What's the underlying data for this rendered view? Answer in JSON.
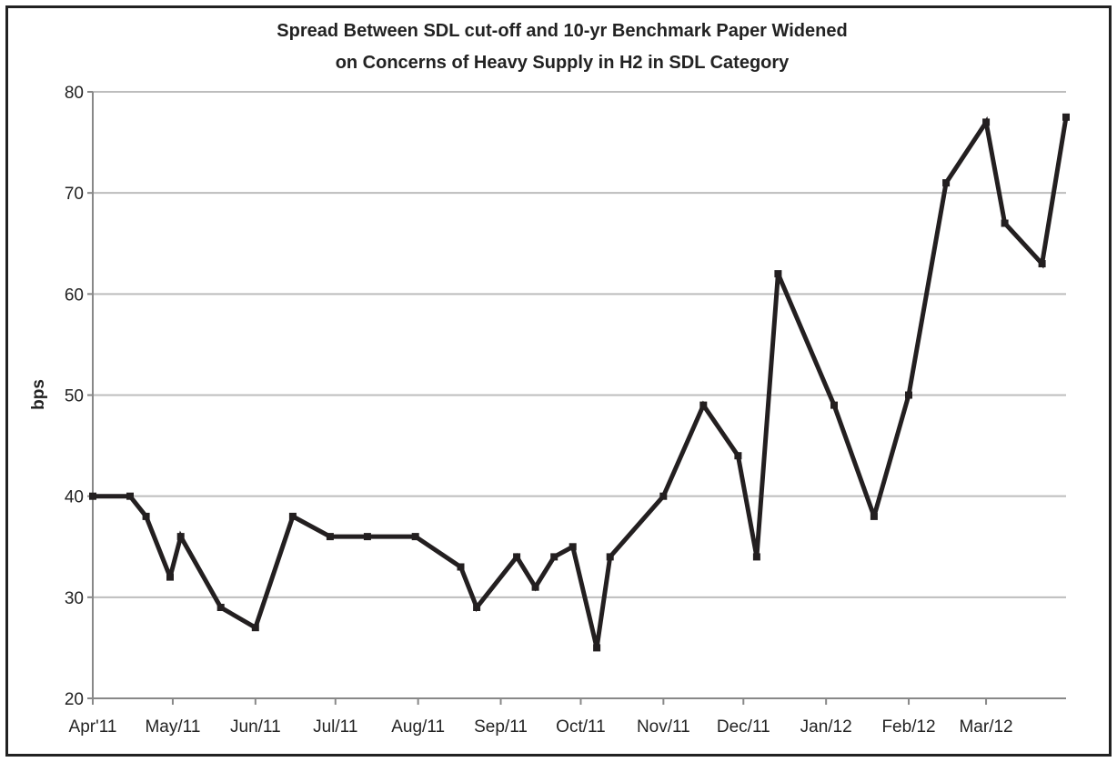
{
  "chart_data": {
    "type": "line",
    "title_line1": "Spread Between SDL cut-off and 10-yr Benchmark Paper Widened",
    "title_line2": "on Concerns of Heavy Supply in H2 in SDL Category",
    "xlabel": "",
    "ylabel": "bps",
    "ylim": [
      20,
      80
    ],
    "yticks": [
      "20",
      "30",
      "40",
      "50",
      "60",
      "70",
      "80"
    ],
    "xlim": [
      "2011-04-01",
      "2012-03-31"
    ],
    "x_tick_labels": [
      "Apr'11",
      "May/11",
      "Jun/11",
      "Jul/11",
      "Aug/11",
      "Sep/11",
      "Oct/11",
      "Nov/11",
      "Dec/11",
      "Jan/12",
      "Feb/12",
      "Mar/12"
    ],
    "grid": true,
    "legend": "none",
    "line_color": "#231f20",
    "grid_color": "#bdbdbd",
    "series": [
      {
        "x": [
          "2011-04-01",
          "2011-04-15",
          "2011-04-21",
          "2011-04-30",
          "2011-05-04",
          "2011-05-19",
          "2011-06-01",
          "2011-06-15",
          "2011-06-29",
          "2011-07-13",
          "2011-07-31",
          "2011-08-17",
          "2011-08-23",
          "2011-09-07",
          "2011-09-14",
          "2011-09-21",
          "2011-09-28",
          "2011-10-07",
          "2011-10-12",
          "2011-11-01",
          "2011-11-16",
          "2011-11-29",
          "2011-12-06",
          "2011-12-14",
          "2012-01-04",
          "2012-01-19",
          "2012-02-01",
          "2012-02-15",
          "2012-03-01",
          "2012-03-08",
          "2012-03-22",
          "2012-03-31"
        ],
        "values": [
          40,
          40,
          38,
          32,
          36,
          29,
          27,
          38,
          36,
          36,
          36,
          33,
          29,
          34,
          31,
          34,
          35,
          25,
          34,
          40,
          49,
          44,
          34,
          62,
          49,
          38,
          50,
          71,
          77,
          67,
          63,
          77.5
        ]
      }
    ]
  }
}
